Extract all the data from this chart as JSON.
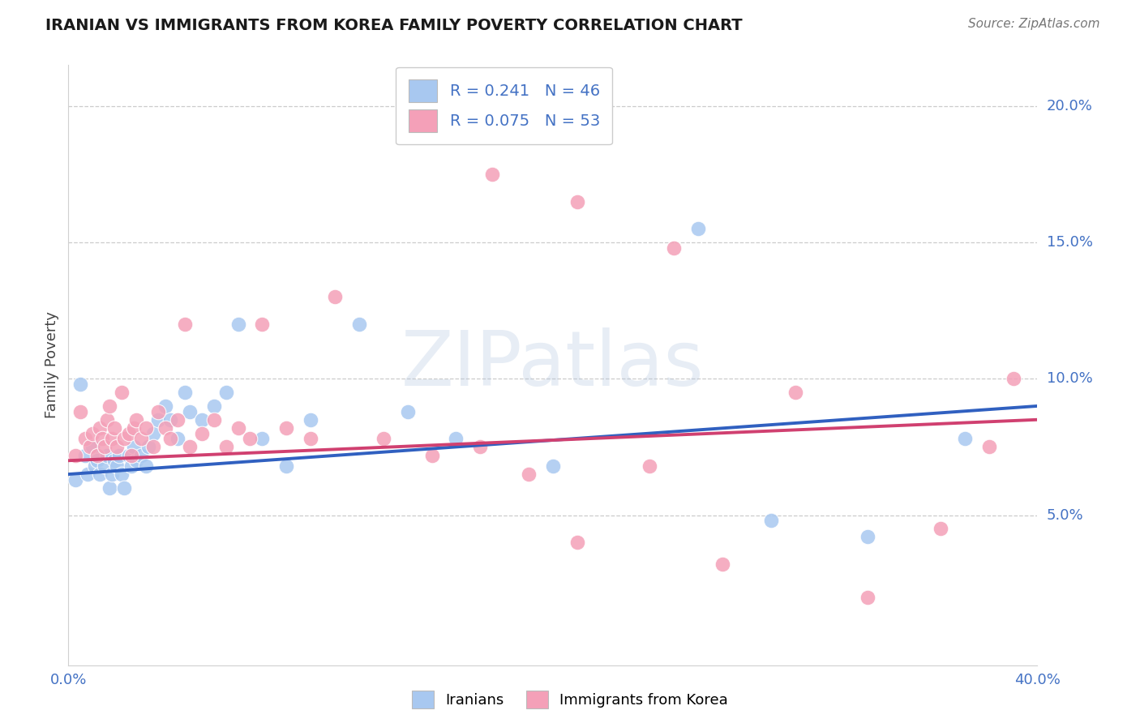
{
  "title": "IRANIAN VS IMMIGRANTS FROM KOREA FAMILY POVERTY CORRELATION CHART",
  "source": "Source: ZipAtlas.com",
  "ylabel": "Family Poverty",
  "R1": "0.241",
  "N1": "46",
  "R2": "0.075",
  "N2": "53",
  "watermark": "ZIPatlas",
  "color_blue": "#A8C8F0",
  "color_pink": "#F4A0B8",
  "color_blue_line": "#3060C0",
  "color_pink_line": "#D04070",
  "color_text_blue": "#4472C4",
  "xlim": [
    0.0,
    0.4
  ],
  "ylim": [
    -0.005,
    0.215
  ],
  "yticks": [
    0.05,
    0.1,
    0.15,
    0.2
  ],
  "legend_label1": "Iranians",
  "legend_label2": "Immigrants from Korea",
  "iranians_x": [
    0.003,
    0.005,
    0.007,
    0.008,
    0.01,
    0.011,
    0.012,
    0.013,
    0.015,
    0.016,
    0.017,
    0.018,
    0.019,
    0.02,
    0.021,
    0.022,
    0.023,
    0.025,
    0.026,
    0.027,
    0.028,
    0.03,
    0.032,
    0.033,
    0.035,
    0.037,
    0.04,
    0.042,
    0.045,
    0.048,
    0.05,
    0.055,
    0.06,
    0.065,
    0.07,
    0.08,
    0.09,
    0.1,
    0.12,
    0.14,
    0.16,
    0.2,
    0.26,
    0.29,
    0.33,
    0.37
  ],
  "iranians_y": [
    0.063,
    0.098,
    0.072,
    0.065,
    0.075,
    0.068,
    0.07,
    0.065,
    0.068,
    0.072,
    0.06,
    0.065,
    0.07,
    0.068,
    0.072,
    0.065,
    0.06,
    0.072,
    0.068,
    0.075,
    0.07,
    0.072,
    0.068,
    0.075,
    0.08,
    0.085,
    0.09,
    0.085,
    0.078,
    0.095,
    0.088,
    0.085,
    0.09,
    0.095,
    0.12,
    0.078,
    0.068,
    0.085,
    0.12,
    0.088,
    0.078,
    0.068,
    0.155,
    0.048,
    0.042,
    0.078
  ],
  "korea_x": [
    0.003,
    0.005,
    0.007,
    0.009,
    0.01,
    0.012,
    0.013,
    0.014,
    0.015,
    0.016,
    0.017,
    0.018,
    0.019,
    0.02,
    0.022,
    0.023,
    0.025,
    0.026,
    0.027,
    0.028,
    0.03,
    0.032,
    0.035,
    0.037,
    0.04,
    0.042,
    0.045,
    0.048,
    0.05,
    0.055,
    0.06,
    0.065,
    0.07,
    0.075,
    0.08,
    0.09,
    0.1,
    0.11,
    0.13,
    0.15,
    0.17,
    0.19,
    0.21,
    0.24,
    0.27,
    0.3,
    0.33,
    0.36,
    0.38,
    0.39,
    0.175,
    0.21,
    0.25
  ],
  "korea_y": [
    0.072,
    0.088,
    0.078,
    0.075,
    0.08,
    0.072,
    0.082,
    0.078,
    0.075,
    0.085,
    0.09,
    0.078,
    0.082,
    0.075,
    0.095,
    0.078,
    0.08,
    0.072,
    0.082,
    0.085,
    0.078,
    0.082,
    0.075,
    0.088,
    0.082,
    0.078,
    0.085,
    0.12,
    0.075,
    0.08,
    0.085,
    0.075,
    0.082,
    0.078,
    0.12,
    0.082,
    0.078,
    0.13,
    0.078,
    0.072,
    0.075,
    0.065,
    0.04,
    0.068,
    0.032,
    0.095,
    0.02,
    0.045,
    0.075,
    0.1,
    0.175,
    0.165,
    0.148
  ]
}
